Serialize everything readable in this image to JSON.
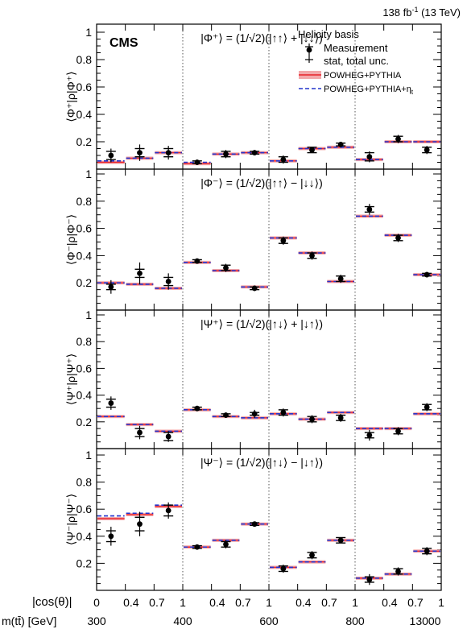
{
  "header": {
    "lumi": "138 fb",
    "lumi_exp": "-1",
    "energy": " (13 TeV)",
    "experiment": "CMS"
  },
  "legend": {
    "title": "Helicity basis",
    "items": [
      {
        "label": "Measurement",
        "kind": "marker"
      },
      {
        "label": "stat, total unc.",
        "kind": "errorbar"
      },
      {
        "label": "POWHEG+PYTHIA",
        "kind": "band"
      },
      {
        "label": "POWHEG+PYTHIA+η",
        "sub": "t",
        "kind": "dashed"
      }
    ]
  },
  "colors": {
    "measurement": "#000000",
    "powheg_line": "#e8222a",
    "powheg_band": "#f2a8ab",
    "eta_line": "#2233cc",
    "separator": "#555555"
  },
  "axis": {
    "xlabel_cos": "|cos(θ)|",
    "xlabel_mass": "m(tt̄) [GeV]",
    "cos_ticks": [
      "0",
      "0.4",
      "0.7",
      "1",
      "0.4",
      "0.7",
      "1",
      "0.4",
      "0.7",
      "1",
      "0.4",
      "0.7",
      "1"
    ],
    "mass_ticks": [
      "300",
      "400",
      "600",
      "800",
      "13000"
    ],
    "ytick_labels": [
      "0.2",
      "0.4",
      "0.6",
      "0.8",
      "1"
    ]
  },
  "chart_data": [
    {
      "type": "scatter",
      "panel": "phi_plus",
      "ylabel": "⟨Φ⁺|ρ|Φ⁺⟩",
      "state_label": "|Φ⁺⟩ = (1/√2)(|↑↑⟩ + |↓↓⟩)",
      "ylim": [
        0,
        1
      ],
      "bins": 12,
      "measurement": [
        0.1,
        0.12,
        0.12,
        0.05,
        0.11,
        0.12,
        0.07,
        0.14,
        0.18,
        0.09,
        0.22,
        0.14
      ],
      "unc_stat": [
        0.03,
        0.03,
        0.03,
        0.01,
        0.02,
        0.01,
        0.02,
        0.02,
        0.01,
        0.03,
        0.02,
        0.02
      ],
      "unc_total": [
        0.05,
        0.06,
        0.05,
        0.02,
        0.03,
        0.02,
        0.03,
        0.02,
        0.02,
        0.04,
        0.03,
        0.03
      ],
      "powheg": [
        0.05,
        0.08,
        0.12,
        0.04,
        0.11,
        0.12,
        0.06,
        0.15,
        0.16,
        0.07,
        0.2,
        0.2
      ],
      "powheg_eta": [
        0.06,
        0.08,
        0.12,
        0.05,
        0.11,
        0.12,
        0.06,
        0.15,
        0.16,
        0.07,
        0.2,
        0.2
      ]
    },
    {
      "type": "scatter",
      "panel": "phi_minus",
      "ylabel": "⟨Φ⁻|ρ|Φ⁻⟩",
      "state_label": "|Φ⁻⟩ = (1/√2)(|↑↑⟩ − |↓↓⟩)",
      "ylim": [
        0,
        1
      ],
      "bins": 12,
      "measurement": [
        0.17,
        0.27,
        0.21,
        0.36,
        0.31,
        0.16,
        0.51,
        0.4,
        0.23,
        0.74,
        0.53,
        0.26
      ],
      "unc_stat": [
        0.02,
        0.03,
        0.03,
        0.01,
        0.02,
        0.01,
        0.02,
        0.02,
        0.02,
        0.02,
        0.02,
        0.01
      ],
      "unc_total": [
        0.05,
        0.08,
        0.06,
        0.02,
        0.03,
        0.02,
        0.03,
        0.03,
        0.03,
        0.04,
        0.03,
        0.02
      ],
      "powheg": [
        0.2,
        0.19,
        0.16,
        0.35,
        0.29,
        0.17,
        0.53,
        0.42,
        0.21,
        0.69,
        0.55,
        0.26
      ],
      "powheg_eta": [
        0.2,
        0.19,
        0.16,
        0.35,
        0.29,
        0.17,
        0.53,
        0.42,
        0.21,
        0.69,
        0.55,
        0.26
      ]
    },
    {
      "type": "scatter",
      "panel": "psi_plus",
      "ylabel": "⟨Ψ⁺|ρ|Ψ⁺⟩",
      "state_label": "|Ψ⁺⟩ = (1/√2)(|↑↓⟩ + |↓↑⟩)",
      "ylim": [
        0,
        1
      ],
      "bins": 12,
      "measurement": [
        0.34,
        0.12,
        0.09,
        0.3,
        0.25,
        0.26,
        0.27,
        0.22,
        0.23,
        0.1,
        0.13,
        0.31
      ],
      "unc_stat": [
        0.03,
        0.03,
        0.03,
        0.01,
        0.01,
        0.01,
        0.02,
        0.02,
        0.02,
        0.02,
        0.02,
        0.02
      ],
      "unc_total": [
        0.05,
        0.05,
        0.04,
        0.02,
        0.02,
        0.03,
        0.03,
        0.03,
        0.03,
        0.04,
        0.03,
        0.03
      ],
      "powheg": [
        0.24,
        0.18,
        0.13,
        0.29,
        0.24,
        0.23,
        0.26,
        0.22,
        0.27,
        0.15,
        0.15,
        0.26
      ],
      "powheg_eta": [
        0.24,
        0.18,
        0.13,
        0.29,
        0.24,
        0.23,
        0.26,
        0.22,
        0.27,
        0.15,
        0.15,
        0.26
      ]
    },
    {
      "type": "scatter",
      "panel": "psi_minus",
      "ylabel": "⟨Ψ⁻|ρ|Ψ⁻⟩",
      "state_label": "|Ψ⁻⟩ = (1/√2)(|↑↓⟩ − |↓↑⟩)",
      "ylim": [
        0,
        1
      ],
      "bins": 12,
      "measurement": [
        0.4,
        0.49,
        0.59,
        0.32,
        0.34,
        0.49,
        0.16,
        0.26,
        0.37,
        0.08,
        0.14,
        0.29
      ],
      "unc_stat": [
        0.04,
        0.05,
        0.04,
        0.01,
        0.02,
        0.01,
        0.02,
        0.02,
        0.02,
        0.02,
        0.02,
        0.02
      ],
      "unc_total": [
        0.07,
        0.09,
        0.06,
        0.02,
        0.03,
        0.01,
        0.03,
        0.03,
        0.02,
        0.04,
        0.03,
        0.03
      ],
      "powheg": [
        0.53,
        0.56,
        0.62,
        0.32,
        0.37,
        0.49,
        0.17,
        0.21,
        0.37,
        0.09,
        0.12,
        0.29
      ],
      "powheg_eta": [
        0.55,
        0.57,
        0.63,
        0.32,
        0.37,
        0.49,
        0.17,
        0.21,
        0.37,
        0.09,
        0.12,
        0.29
      ]
    }
  ]
}
